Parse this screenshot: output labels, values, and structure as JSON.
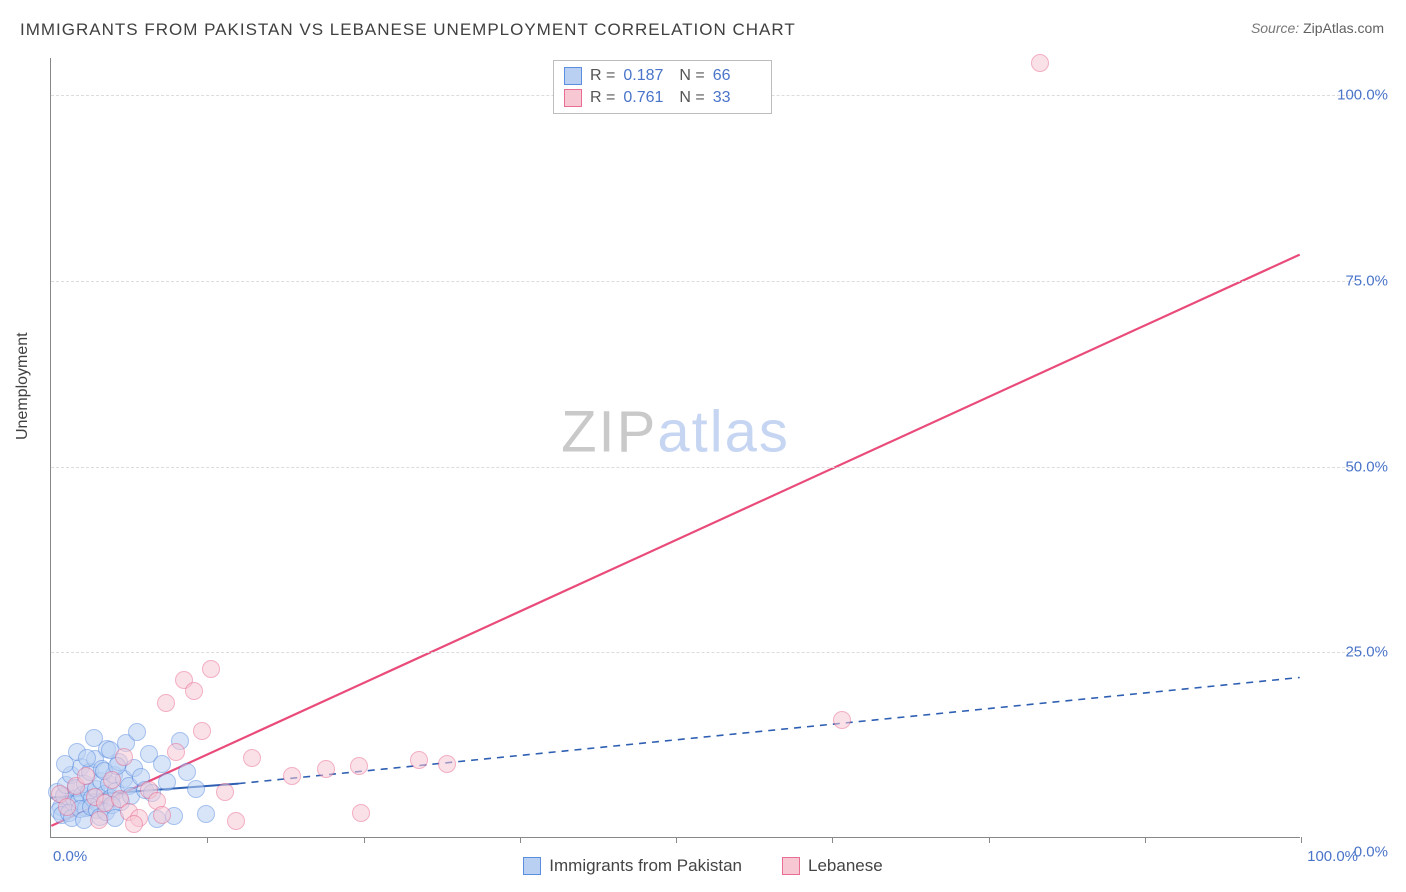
{
  "title": "IMMIGRANTS FROM PAKISTAN VS LEBANESE UNEMPLOYMENT CORRELATION CHART",
  "source": {
    "label": "Source:",
    "value": "ZipAtlas.com"
  },
  "ylabel": "Unemployment",
  "watermark": {
    "part1": "ZIP",
    "part2": "atlas"
  },
  "chart": {
    "type": "scatter",
    "xlim": [
      0,
      100
    ],
    "ylim": [
      0,
      105
    ],
    "background_color": "#ffffff",
    "grid_color": "#dcdcdc",
    "axis_color": "#888888",
    "ylabel_color": "#404040",
    "tick_color": "#4a74c9",
    "tick_fontsize": 15,
    "y_ticks": [
      {
        "v": 0,
        "label": "0.0%"
      },
      {
        "v": 25,
        "label": "25.0%"
      },
      {
        "v": 50,
        "label": "50.0%"
      },
      {
        "v": 75,
        "label": "75.0%"
      },
      {
        "v": 100,
        "label": "100.0%"
      }
    ],
    "x_ticks_minor": [
      12.5,
      25,
      37.5,
      50,
      62.5,
      75,
      87.5,
      100
    ],
    "x_ticks_labeled": [
      {
        "v": 0,
        "label": "0.0%",
        "align": "left"
      },
      {
        "v": 100,
        "label": "100.0%",
        "align": "right"
      }
    ],
    "marker_radius": 9,
    "marker_opacity": 0.55,
    "marker_stroke_width": 1.2,
    "series": [
      {
        "name": "Immigrants from Pakistan",
        "fill": "#b9d0f3",
        "stroke": "#5c8ee0",
        "R": "0.187",
        "N": "66",
        "trend": {
          "color": "#2e5fb3",
          "width": 2,
          "solid_to_x": 15,
          "y_at_0": 5.3,
          "y_at_solid_end": 7.2,
          "y_at_100": 21.5,
          "dash": "7,6"
        },
        "points": [
          [
            0.5,
            6
          ],
          [
            0.8,
            4
          ],
          [
            1,
            5.5
          ],
          [
            1.2,
            7
          ],
          [
            1.5,
            4.2
          ],
          [
            1.6,
            8.3
          ],
          [
            1.8,
            5.1
          ],
          [
            2,
            6.6
          ],
          [
            2.2,
            4.8
          ],
          [
            2.4,
            9.4
          ],
          [
            2.5,
            5.7
          ],
          [
            2.7,
            7.2
          ],
          [
            2.8,
            3.9
          ],
          [
            3,
            6.1
          ],
          [
            3.1,
            8.8
          ],
          [
            3.3,
            5.2
          ],
          [
            3.5,
            10.5
          ],
          [
            3.6,
            6.4
          ],
          [
            3.8,
            4.5
          ],
          [
            4,
            7.6
          ],
          [
            4.1,
            9.1
          ],
          [
            4.3,
            5.8
          ],
          [
            4.5,
            11.9
          ],
          [
            4.6,
            7.1
          ],
          [
            4.8,
            5.3
          ],
          [
            5,
            8.4
          ],
          [
            5.2,
            6.2
          ],
          [
            5.4,
            10.1
          ],
          [
            5.6,
            4.7
          ],
          [
            5.8,
            7.8
          ],
          [
            6,
            12.6
          ],
          [
            6.2,
            6.9
          ],
          [
            6.4,
            5.5
          ],
          [
            6.6,
            9.3
          ],
          [
            6.9,
            14.1
          ],
          [
            7.2,
            8.1
          ],
          [
            7.5,
            6.3
          ],
          [
            7.8,
            11.2
          ],
          [
            8.1,
            5.9
          ],
          [
            8.5,
            2.4
          ],
          [
            8.9,
            9.8
          ],
          [
            9.3,
            7.4
          ],
          [
            9.8,
            2.8
          ],
          [
            10.3,
            12.9
          ],
          [
            10.9,
            8.7
          ],
          [
            11.6,
            6.5
          ],
          [
            12.4,
            3.1
          ],
          [
            0.6,
            3.5
          ],
          [
            0.9,
            2.9
          ],
          [
            1.1,
            9.8
          ],
          [
            1.4,
            3.2
          ],
          [
            1.7,
            2.6
          ],
          [
            2.1,
            11.4
          ],
          [
            2.3,
            3.8
          ],
          [
            2.6,
            2.3
          ],
          [
            2.9,
            10.7
          ],
          [
            3.2,
            4.1
          ],
          [
            3.4,
            13.3
          ],
          [
            3.7,
            3.6
          ],
          [
            3.9,
            2.7
          ],
          [
            4.2,
            8.9
          ],
          [
            4.4,
            3.4
          ],
          [
            4.7,
            11.7
          ],
          [
            4.9,
            4.3
          ],
          [
            5.1,
            2.5
          ],
          [
            5.3,
            9.6
          ]
        ]
      },
      {
        "name": "Lebanese",
        "fill": "#f7c8d4",
        "stroke": "#e86f93",
        "R": "0.761",
        "N": "33",
        "trend": {
          "color": "#e94b7a",
          "width": 2.2,
          "solid_to_x": 100,
          "y_at_0": 1.5,
          "y_at_solid_end": 78.5,
          "y_at_100": 78.5,
          "dash": null
        },
        "points": [
          [
            0.7,
            5.8
          ],
          [
            1.3,
            4.1
          ],
          [
            2,
            6.9
          ],
          [
            2.8,
            8.2
          ],
          [
            3.5,
            5.4
          ],
          [
            4.3,
            4.6
          ],
          [
            3.8,
            2.3
          ],
          [
            4.9,
            7.7
          ],
          [
            5.5,
            5.1
          ],
          [
            6.2,
            3.4
          ],
          [
            5.8,
            10.8
          ],
          [
            7,
            2.6
          ],
          [
            7.8,
            6.3
          ],
          [
            8.5,
            4.9
          ],
          [
            9.2,
            18.1
          ],
          [
            10,
            11.4
          ],
          [
            10.6,
            21.2
          ],
          [
            11.4,
            19.6
          ],
          [
            12.8,
            22.6
          ],
          [
            12.1,
            14.3
          ],
          [
            14.8,
            2.1
          ],
          [
            16.1,
            10.6
          ],
          [
            19.3,
            8.2
          ],
          [
            22,
            9.1
          ],
          [
            24.6,
            9.5
          ],
          [
            24.8,
            3.2
          ],
          [
            29.4,
            10.4
          ],
          [
            31.7,
            9.8
          ],
          [
            63.3,
            15.8
          ],
          [
            79.1,
            104.2
          ],
          [
            6.6,
            1.8
          ],
          [
            8.9,
            2.9
          ],
          [
            13.9,
            6.1
          ]
        ]
      }
    ]
  },
  "legend_top": {
    "r_label": "R =",
    "n_label": "N ="
  },
  "legend_bottom": {
    "items": [
      {
        "series": 0
      },
      {
        "series": 1
      }
    ]
  }
}
